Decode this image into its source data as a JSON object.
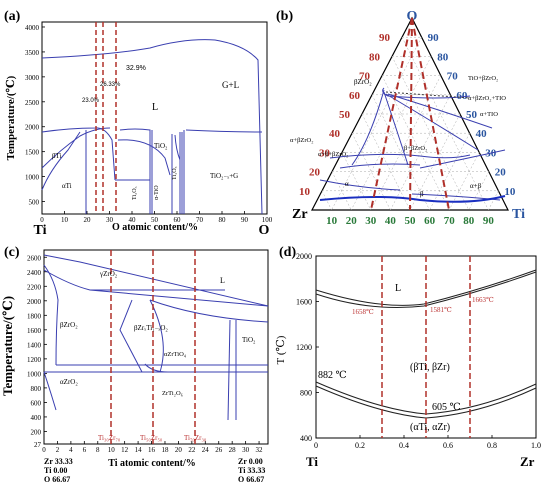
{
  "panel_a": {
    "label": "(a)",
    "y_title": "Temperature/(℃)",
    "x_title": "O atomic content/%",
    "left_element": "Ti",
    "right_element": "O",
    "y_ticks": [
      "500",
      "1000",
      "1500",
      "2000",
      "2500",
      "3000",
      "3500",
      "4000"
    ],
    "x_ticks": [
      "0",
      "10",
      "20",
      "30",
      "40",
      "50",
      "60",
      "70",
      "80",
      "90",
      "100"
    ],
    "annotations": {
      "p1": "32.9%",
      "p2": "26.33%",
      "p3": "23.0%",
      "L": "L",
      "GL": "G+L",
      "bTi": "βTi",
      "aTi": "αTi",
      "TiO2": "TiO₂",
      "TiO2xG": "TiO₂₋ₓ+G",
      "Ti3O5": "Ti₃O₅",
      "Ti2O3": "Ti₂O₃",
      "aTiO": "α-TiO"
    }
  },
  "panel_b": {
    "label": "(b)",
    "corner_top": "O",
    "corner_left": "Zr",
    "corner_right": "Ti",
    "left_ticks": [
      "90",
      "80",
      "70",
      "60",
      "50",
      "40",
      "30",
      "20",
      "10"
    ],
    "right_ticks": [
      "90",
      "80",
      "70",
      "60",
      "50",
      "40",
      "30",
      "20",
      "10"
    ],
    "bottom_ticks": [
      "10",
      "20",
      "30",
      "40",
      "50",
      "60",
      "70",
      "80",
      "90"
    ],
    "annotations": {
      "bZrO2": "βZrO₂",
      "TiO_bZrO2": "TiO+βZrO₂",
      "a_bZrO2_TiO": "α+βZrO₂+TIO",
      "a_TiO": "α+TIO",
      "a_bZrO2": "α+βZrO₂",
      "a_b_bZrO2": "α+β+βZrO₂",
      "b_bZrO2": "β+βZrO₂",
      "a_b": "α+β",
      "a": "α",
      "b": "β"
    }
  },
  "panel_c": {
    "label": "(c)",
    "y_title": "Temperature/(℃)",
    "x_title": "Ti atomic content/%",
    "y_ticks": [
      "27",
      "200",
      "400",
      "600",
      "800",
      "1000",
      "1200",
      "1400",
      "1600",
      "1800",
      "2000",
      "2200",
      "2400",
      "2600"
    ],
    "x_ticks": [
      "0",
      "2",
      "4",
      "6",
      "8",
      "10",
      "12",
      "14",
      "16",
      "18",
      "20",
      "22",
      "24",
      "26",
      "28",
      "30",
      "32"
    ],
    "left_comp": [
      "Zr 33.33",
      "Ti  0.00",
      "O  66.67"
    ],
    "right_comp": [
      "Zr  0.00",
      "Ti 33.33",
      "O  66.67"
    ],
    "annotations": {
      "yZrO2": "γZrO₂",
      "bZrO2": "βZrO₂",
      "L": "L",
      "bZrTiO": "βZrₓTi₁₋ₓO₂",
      "aZrTiO4": "αZrTiO₄",
      "aZrO2": "αZrO₂",
      "ZrTi2O6": "ZrTi₂O₆",
      "TiO2": "TiO₂"
    },
    "compositions": [
      "Ti₃₀Zr₇₀",
      "Ti₅₀Zr₅₀",
      "Ti₇₀Zr₃₀"
    ]
  },
  "panel_d": {
    "label": "(d)",
    "y_title": "T (℃)",
    "left_element": "Ti",
    "right_element": "Zr",
    "y_ticks": [
      "400",
      "800",
      "1200",
      "1600",
      "2000"
    ],
    "x_ticks": [
      "0",
      "0.2",
      "0.4",
      "0.6",
      "0.8",
      "1.0"
    ],
    "annotations": {
      "L": "L",
      "t1658": "1658℃",
      "t1581": "1581℃",
      "t1663": "1663℃",
      "t882": "882 ℃",
      "t605": "605 ℃",
      "bTiZr": "(βTi, βZr)",
      "aTiZr": "(αTi, αZr)"
    }
  }
}
